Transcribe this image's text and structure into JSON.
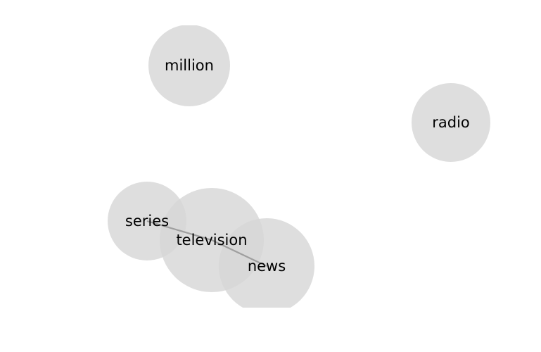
{
  "graph": {
    "type": "network",
    "nodes": [
      {
        "id": "million",
        "label": "million"
      },
      {
        "id": "radio",
        "label": "radio"
      },
      {
        "id": "series",
        "label": "series"
      },
      {
        "id": "television",
        "label": "television"
      },
      {
        "id": "news",
        "label": "news"
      }
    ],
    "edges": [
      {
        "source": "series",
        "target": "television"
      },
      {
        "source": "television",
        "target": "news"
      }
    ],
    "colors": {
      "node_fill": "#d6d6d6",
      "edge": "#999999",
      "label": "#000000",
      "background": "#ffffff"
    }
  }
}
